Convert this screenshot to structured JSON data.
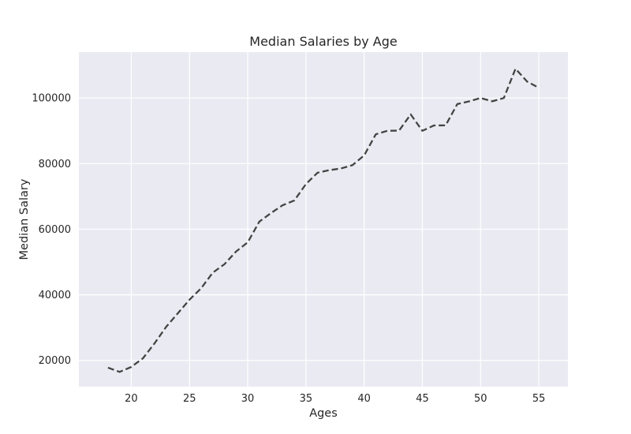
{
  "chart_data": {
    "type": "line",
    "title": "Median Salaries by Age",
    "xlabel": "Ages",
    "ylabel": "Median Salary",
    "xlim": [
      15.5,
      57.5
    ],
    "ylim": [
      12000,
      114000
    ],
    "xticks": [
      20,
      25,
      30,
      35,
      40,
      45,
      50,
      55
    ],
    "yticks": [
      20000,
      40000,
      60000,
      80000,
      100000
    ],
    "grid": true,
    "background": "#eaeaf2",
    "series": [
      {
        "color": "#444444",
        "style": "dashed",
        "x": [
          18,
          19,
          20,
          21,
          22,
          23,
          24,
          25,
          26,
          27,
          28,
          29,
          30,
          31,
          32,
          33,
          34,
          35,
          36,
          37,
          38,
          39,
          40,
          41,
          42,
          43,
          44,
          45,
          46,
          47,
          48,
          49,
          50,
          51,
          52,
          53,
          54,
          55
        ],
        "values": [
          17784,
          16500,
          18012,
          20628,
          25206,
          30252,
          34368,
          38496,
          42000,
          46752,
          49320,
          53200,
          56000,
          62316,
          64928,
          67317,
          68748,
          73752,
          77232,
          78000,
          78508,
          79536,
          82488,
          88935,
          90000,
          90056,
          95000,
          90000,
          91633,
          91660,
          98150,
          98964,
          100000,
          98988,
          100000,
          108923,
          105000,
          103117
        ]
      }
    ]
  }
}
